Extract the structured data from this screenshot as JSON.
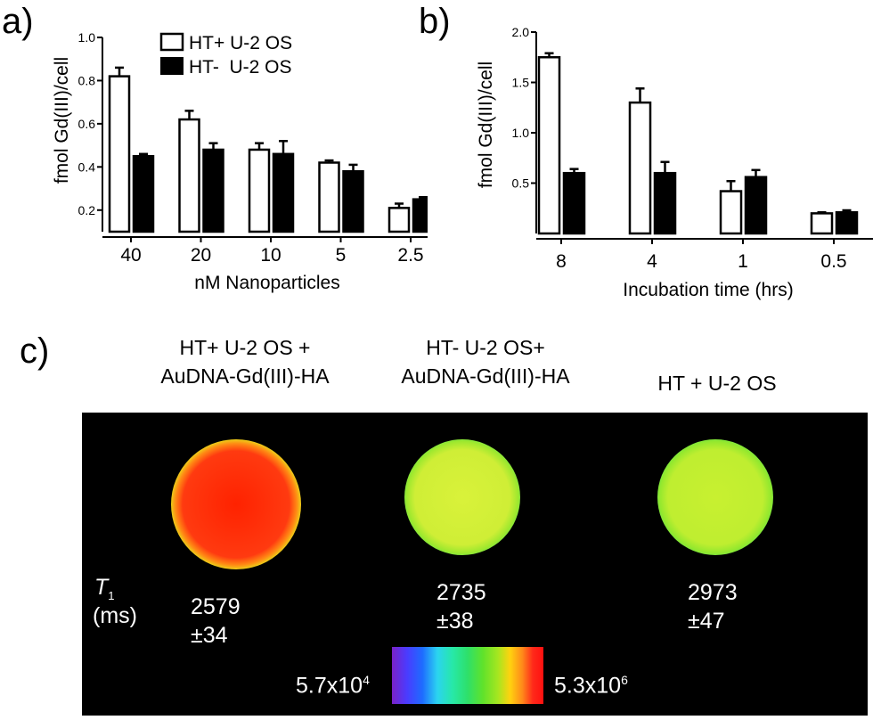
{
  "panels": {
    "a": "a)",
    "b": "b)",
    "c": "c)"
  },
  "colors": {
    "open_bar": "#ffffff",
    "filled_bar": "#000000"
  },
  "chart_data": [
    {
      "type": "bar",
      "ylabel": "fmol Gd(III)/cell",
      "xlabel": "nM Nanoparticles",
      "categories": [
        "40",
        "20",
        "10",
        "5",
        "2.5"
      ],
      "ylim": [
        0.1,
        1.0
      ],
      "yticks": [
        "0.2",
        "0.4",
        "0.6",
        "0.8",
        "1.0"
      ],
      "series": [
        {
          "name": "HT+ U-2 OS",
          "values": [
            0.82,
            0.62,
            0.48,
            0.42,
            0.21
          ],
          "errors": [
            0.04,
            0.04,
            0.03,
            0.01,
            0.02
          ]
        },
        {
          "name": "HT-  U-2 OS",
          "values": [
            0.45,
            0.48,
            0.46,
            0.38,
            0.25
          ],
          "errors": [
            0.01,
            0.03,
            0.06,
            0.03,
            0.01
          ]
        }
      ],
      "legend": "top-right"
    },
    {
      "type": "bar",
      "ylabel": "fmol Gd(III)/cell",
      "xlabel": "Incubation time (hrs)",
      "categories": [
        "8",
        "4",
        "1",
        "0.5"
      ],
      "ylim": [
        0.0,
        2.0
      ],
      "yticks": [
        "0.5",
        "1.0",
        "1.5",
        "2.0"
      ],
      "series": [
        {
          "values": [
            1.75,
            1.3,
            0.42,
            0.2
          ],
          "errors": [
            0.04,
            0.14,
            0.1,
            0.01
          ]
        },
        {
          "values": [
            0.6,
            0.6,
            0.56,
            0.21
          ],
          "errors": [
            0.04,
            0.11,
            0.07,
            0.02
          ]
        }
      ]
    }
  ],
  "mri": {
    "captions": [
      {
        "line1": "HT+ U-2 OS +",
        "line2": "AuDNA-Gd(III)-HA"
      },
      {
        "line1": "HT- U-2 OS+",
        "line2": "AuDNA-Gd(III)-HA"
      },
      {
        "line1": "HT + U-2 OS",
        "line2": ""
      }
    ],
    "t1_symbol": "T",
    "t1_sub": "1",
    "t1_unit": "(ms)",
    "values": [
      {
        "value": "2579",
        "error": "±34"
      },
      {
        "value": "2735",
        "error": "±38"
      },
      {
        "value": "2973",
        "error": "±47"
      }
    ],
    "colorbar": {
      "min_base": "5.7x10",
      "min_exp": "4",
      "max_base": "5.3x10",
      "max_exp": "6"
    }
  }
}
